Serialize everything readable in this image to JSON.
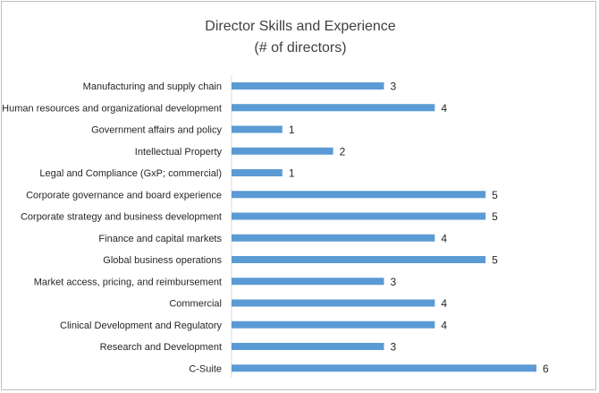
{
  "chart_data": {
    "type": "bar",
    "orientation": "horizontal",
    "title": "Director Skills and Experience",
    "subtitle": "(# of directors)",
    "categories": [
      "Manufacturing and supply chain",
      "Human resources and organizational development",
      "Government affairs and policy",
      "Intellectual Property",
      "Legal and Compliance (GxP; commercial)",
      "Corporate governance and board experience",
      "Corporate strategy and business development",
      "Finance and capital markets",
      "Global business operations",
      "Market access, pricing, and reimbursement",
      "Commercial",
      "Clinical Development and Regulatory",
      "Research and Development",
      "C-Suite"
    ],
    "values": [
      3,
      4,
      1,
      2,
      1,
      5,
      5,
      4,
      5,
      3,
      4,
      4,
      3,
      6
    ],
    "xlim": [
      0,
      6
    ],
    "bar_color": "#5b9bd5",
    "grid": false,
    "legend": "none",
    "data_labels": true
  }
}
